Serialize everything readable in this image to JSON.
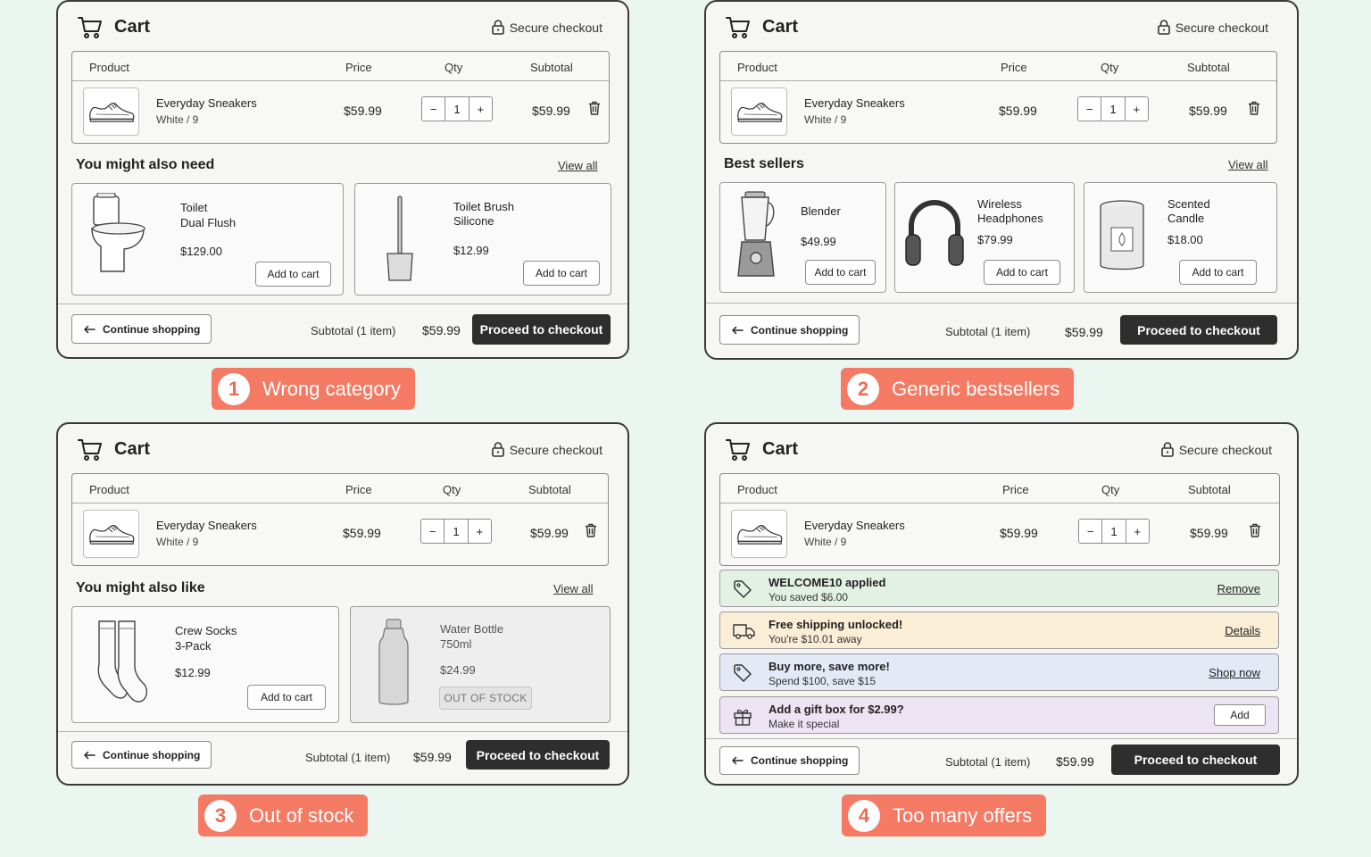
{
  "colors": {
    "background": "#eaf6ef",
    "badge": "#f47a64",
    "checkout": "#2e2e2e",
    "offer_green": "#e3f1e4",
    "offer_yellow": "#faeed6",
    "offer_blue": "#e3eaf6",
    "offer_purple": "#ece4f2"
  },
  "common": {
    "cart_title": "Cart",
    "secure_checkout": "Secure checkout",
    "col_product": "Product",
    "col_price": "Price",
    "col_qty": "Qty",
    "col_subtotal": "Subtotal",
    "product_name": "Everyday Sneakers",
    "product_variant": "White / 9",
    "product_price": "$59.99",
    "qty_minus": "−",
    "qty_value": "1",
    "qty_plus": "+",
    "product_subtotal": "$59.99",
    "continue_shopping": "Continue shopping",
    "subtotal_label": "Subtotal (1 item)",
    "subtotal_value": "$59.99",
    "checkout": "Proceed to checkout",
    "view_all": "View all",
    "add_to_cart": "Add to cart"
  },
  "panel1": {
    "section_title": "You might also need",
    "cards": [
      {
        "name1": "Toilet",
        "name2": "Dual Flush",
        "price": "$129.00",
        "icon": "toilet-icon"
      },
      {
        "name1": "Toilet Brush",
        "name2": "Silicone",
        "price": "$12.99",
        "icon": "toilet-brush-icon"
      }
    ],
    "badge_num": "1",
    "badge_text": "Wrong category"
  },
  "panel2": {
    "section_title": "Best sellers",
    "cards": [
      {
        "name1": "Blender",
        "name2": "",
        "price": "$49.99",
        "icon": "blender-icon"
      },
      {
        "name1": "Wireless",
        "name2": "Headphones",
        "price": "$79.99",
        "icon": "headphones-icon"
      },
      {
        "name1": "Scented",
        "name2": "Candle",
        "price": "$18.00",
        "icon": "candle-icon"
      }
    ],
    "badge_num": "2",
    "badge_text": "Generic bestsellers"
  },
  "panel3": {
    "section_title": "You might also like",
    "cards": [
      {
        "name1": "Crew Socks",
        "name2": "3-Pack",
        "price": "$12.99",
        "icon": "socks-icon"
      },
      {
        "name1": "Water Bottle",
        "name2": "750ml",
        "price": "$24.99",
        "icon": "water-bottle-icon",
        "status": "OUT OF STOCK"
      }
    ],
    "badge_num": "3",
    "badge_text": "Out of stock"
  },
  "panel4": {
    "offers": [
      {
        "title": "WELCOME10 applied",
        "sub": "You saved $6.00",
        "action": "Remove",
        "icon": "tag-icon"
      },
      {
        "title": "Free shipping unlocked!",
        "sub": "You're $10.01 away",
        "action": "Details",
        "icon": "truck-icon"
      },
      {
        "title": "Buy more, save more!",
        "sub": "Spend $100, save $15",
        "action": "Shop now",
        "icon": "tag-icon"
      },
      {
        "title": "Add a gift box for $2.99?",
        "sub": "Make it special",
        "action": "Add",
        "icon": "gift-icon"
      }
    ],
    "badge_num": "4",
    "badge_text": "Too many offers"
  }
}
